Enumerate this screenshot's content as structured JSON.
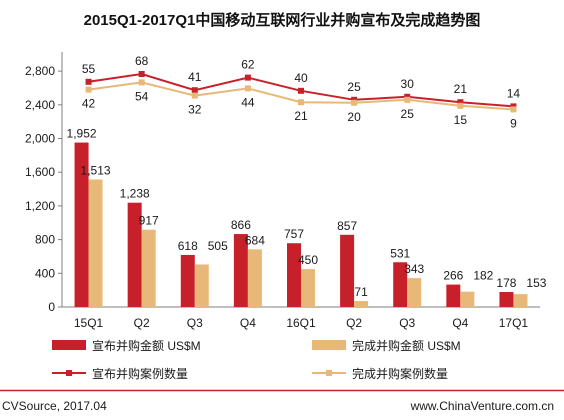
{
  "title": "2015Q1-2017Q1中国移动互联网行业并购宣布及完成趋势图",
  "footer": {
    "source": "CVSource, 2017.04",
    "website": "www.ChinaVenture.com.cn"
  },
  "colors": {
    "announced": "#c8202a",
    "completed": "#e8b878",
    "accent_line": "#c8202a"
  },
  "chart_data": {
    "type": "bar",
    "categories": [
      "15Q1",
      "Q2",
      "Q3",
      "Q4",
      "16Q1",
      "Q2",
      "Q3",
      "Q4",
      "17Q1"
    ],
    "yticks": [
      "0",
      "400",
      "800",
      "1,200",
      "1,600",
      "2,000",
      "2,400",
      "2,800"
    ],
    "ylim": [
      0,
      3000
    ],
    "grid": false,
    "legend_position": "bottom",
    "series": [
      {
        "name": "宣布并购金额 US$M",
        "kind": "bar",
        "values": [
          1952,
          1238,
          618,
          866,
          757,
          857,
          531,
          266,
          178
        ],
        "labels": [
          "1,952",
          "1,238",
          "618",
          "866",
          "757",
          "857",
          "531",
          "266",
          "178"
        ]
      },
      {
        "name": "完成并购金额 US$M",
        "kind": "bar",
        "values": [
          1513,
          917,
          505,
          684,
          450,
          71,
          343,
          182,
          153
        ],
        "labels": [
          "1,513",
          "917",
          "505",
          "684",
          "450",
          "71",
          "343",
          "182",
          "153"
        ]
      },
      {
        "name": "宣布并购案例数量",
        "kind": "line",
        "values": [
          55,
          68,
          41,
          62,
          40,
          25,
          30,
          21,
          14
        ],
        "labels": [
          "55",
          "68",
          "41",
          "62",
          "40",
          "25",
          "30",
          "21",
          "14"
        ]
      },
      {
        "name": "完成并购案例数量",
        "kind": "line",
        "values": [
          42,
          54,
          32,
          44,
          21,
          20,
          25,
          15,
          9
        ],
        "labels": [
          "42",
          "54",
          "32",
          "44",
          "21",
          "20",
          "25",
          "15",
          "9"
        ]
      }
    ]
  }
}
